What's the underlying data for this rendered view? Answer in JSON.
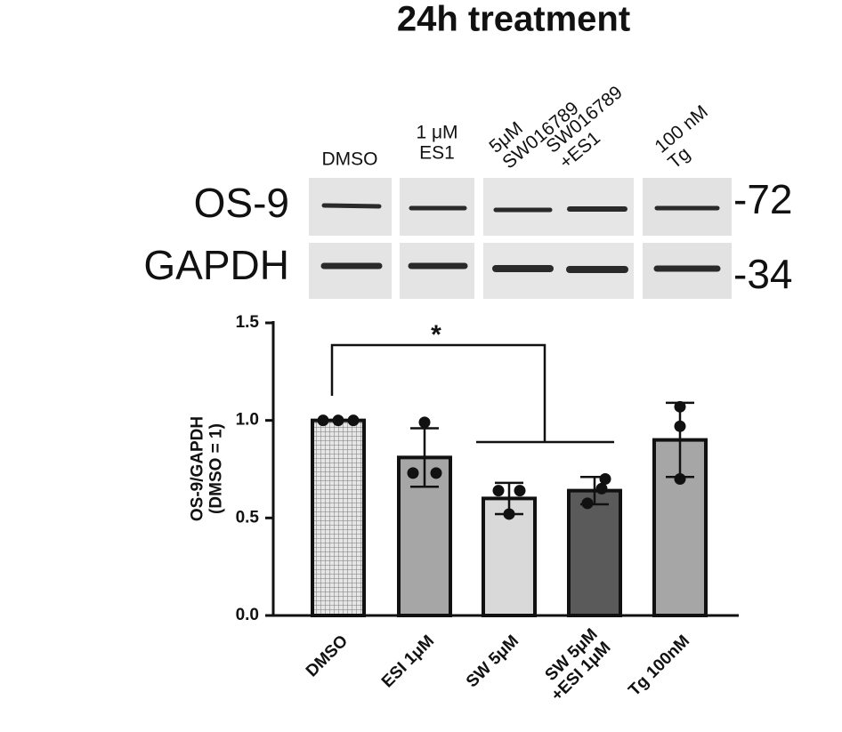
{
  "title": "24h treatment",
  "blot": {
    "lanes": [
      "DMSO",
      "1 μM\nES1",
      "5μM\nSW016789",
      "SW016789\n+ES1",
      "100 nM\nTg"
    ],
    "rows": [
      {
        "protein": "OS-9",
        "marker": "-72"
      },
      {
        "protein": "GAPDH",
        "marker": "-34"
      }
    ]
  },
  "chart_data": {
    "type": "bar",
    "y_label": "OS-9/GAPDH\n(DMSO = 1)",
    "categories": [
      "DMSO",
      "ESI 1μM",
      "SW 5μM",
      "SW 5μM\n+ESI 1μM",
      "Tg 100nM"
    ],
    "values": [
      1.0,
      0.81,
      0.6,
      0.64,
      0.9
    ],
    "errors": [
      0,
      0.15,
      0.08,
      0.07,
      0.19
    ],
    "points": [
      [
        1.0,
        1.0,
        1.0
      ],
      [
        0.99,
        0.73,
        0.73
      ],
      [
        0.64,
        0.64,
        0.52
      ],
      [
        0.575,
        0.65,
        0.7
      ],
      [
        1.07,
        0.97,
        0.7
      ]
    ],
    "colors": [
      "#cfcfcf",
      "#a6a6a6",
      "#d9d9d9",
      "#5a5a5a",
      "#a6a6a6"
    ],
    "hatched": [
      true,
      false,
      false,
      false,
      false
    ],
    "ylim": [
      0,
      1.5
    ],
    "yticks": [
      {
        "value": 0,
        "label": "0.0"
      },
      0.5,
      {
        "value": 1,
        "label": "1.0"
      },
      1.5
    ],
    "annotations": [
      "*"
    ]
  }
}
